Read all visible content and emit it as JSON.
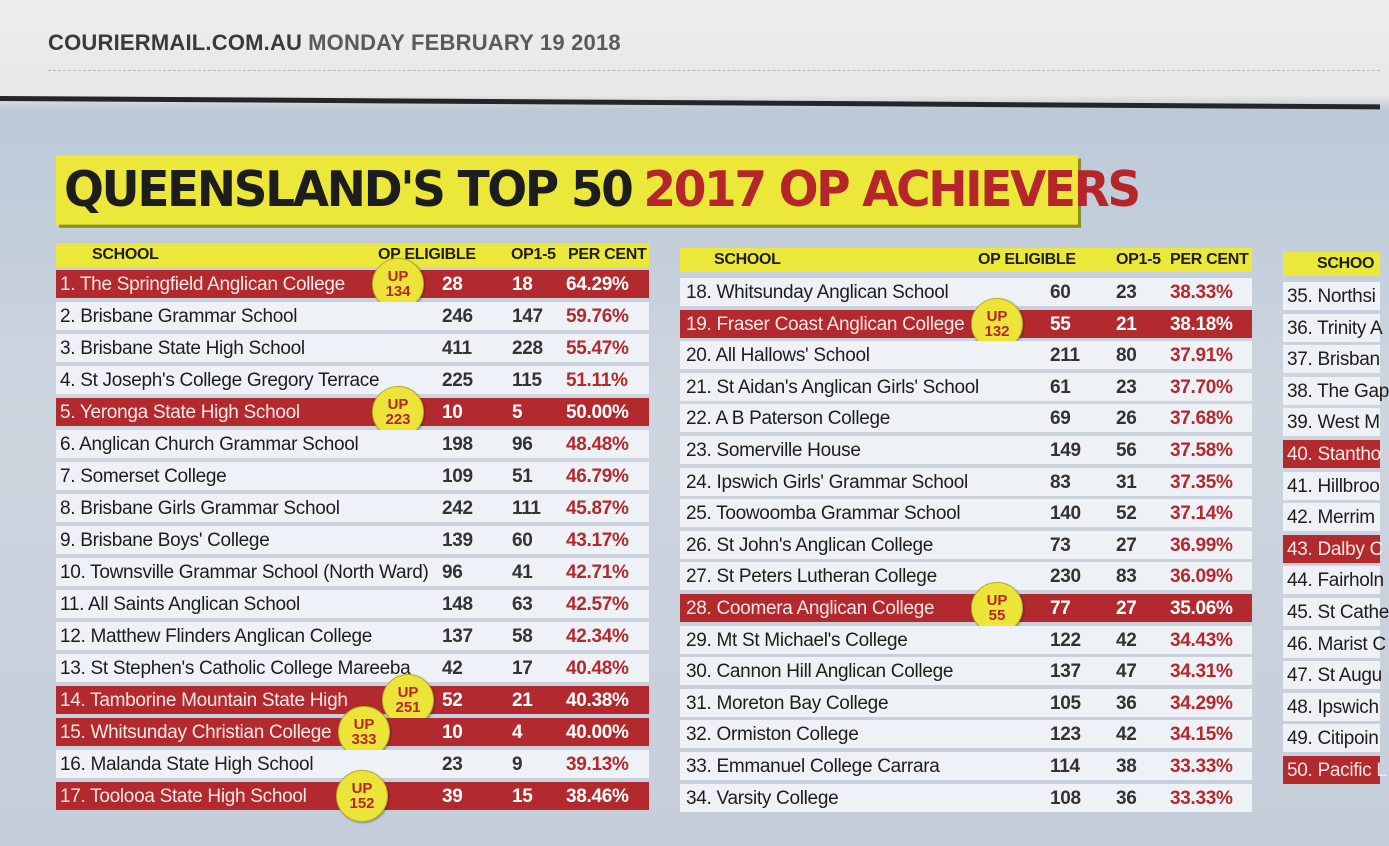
{
  "masthead": {
    "site": "COURIERMAIL.COM.AU",
    "date": "MONDAY FEBRUARY 19 2018"
  },
  "title": {
    "part1": "QUEENSLAND'S TOP 50",
    "part2": "2017 OP ACHIEVERS"
  },
  "headers": {
    "school": "SCHOOL",
    "eligible": "OP ELIGIBLE",
    "op": "OP1-5",
    "percent": "PER CENT"
  },
  "colors": {
    "highlight": "#b22a2e",
    "yellow": "#ece83a",
    "percent": "#b22a2e"
  },
  "col1": [
    {
      "name": "1. The Springfield Anglican College",
      "eligible": "28",
      "op": "18",
      "pct": "64.29%",
      "hl": true,
      "badge": "134"
    },
    {
      "name": "2. Brisbane Grammar School",
      "eligible": "246",
      "op": "147",
      "pct": "59.76%"
    },
    {
      "name": "3. Brisbane State High School",
      "eligible": "411",
      "op": "228",
      "pct": "55.47%"
    },
    {
      "name": "4. St Joseph's College Gregory Terrace",
      "eligible": "225",
      "op": "115",
      "pct": "51.11%"
    },
    {
      "name": "5. Yeronga State High School",
      "eligible": "10",
      "op": "5",
      "pct": "50.00%",
      "hl": true,
      "badge": "223"
    },
    {
      "name": "6. Anglican Church Grammar School",
      "eligible": "198",
      "op": "96",
      "pct": "48.48%"
    },
    {
      "name": "7. Somerset College",
      "eligible": "109",
      "op": "51",
      "pct": "46.79%"
    },
    {
      "name": "8. Brisbane Girls Grammar School",
      "eligible": "242",
      "op": "111",
      "pct": "45.87%"
    },
    {
      "name": "9. Brisbane Boys' College",
      "eligible": "139",
      "op": "60",
      "pct": "43.17%"
    },
    {
      "name": "10. Townsville Grammar School (North Ward)",
      "eligible": "96",
      "op": "41",
      "pct": "42.71%"
    },
    {
      "name": "11. All Saints Anglican School",
      "eligible": "148",
      "op": "63",
      "pct": "42.57%"
    },
    {
      "name": "12. Matthew Flinders Anglican College",
      "eligible": "137",
      "op": "58",
      "pct": "42.34%"
    },
    {
      "name": "13. St Stephen's Catholic College Mareeba",
      "eligible": "42",
      "op": "17",
      "pct": "40.48%"
    },
    {
      "name": "14. Tamborine Mountain State High",
      "eligible": "52",
      "op": "21",
      "pct": "40.38%",
      "hl": true,
      "badge": "251"
    },
    {
      "name": "15. Whitsunday Christian College",
      "eligible": "10",
      "op": "4",
      "pct": "40.00%",
      "hl": true,
      "badge": "333"
    },
    {
      "name": "16. Malanda State High School",
      "eligible": "23",
      "op": "9",
      "pct": "39.13%"
    },
    {
      "name": "17. Toolooa State High School",
      "eligible": "39",
      "op": "15",
      "pct": "38.46%",
      "hl": true,
      "badge": "152"
    }
  ],
  "col2": [
    {
      "name": "18. Whitsunday Anglican School",
      "eligible": "60",
      "op": "23",
      "pct": "38.33%"
    },
    {
      "name": "19. Fraser Coast Anglican College",
      "eligible": "55",
      "op": "21",
      "pct": "38.18%",
      "hl": true,
      "badge": "132"
    },
    {
      "name": "20. All Hallows' School",
      "eligible": "211",
      "op": "80",
      "pct": "37.91%"
    },
    {
      "name": "21. St Aidan's Anglican Girls' School",
      "eligible": "61",
      "op": "23",
      "pct": "37.70%"
    },
    {
      "name": "22. A B Paterson College",
      "eligible": "69",
      "op": "26",
      "pct": "37.68%"
    },
    {
      "name": "23. Somerville House",
      "eligible": "149",
      "op": "56",
      "pct": "37.58%"
    },
    {
      "name": "24. Ipswich Girls' Grammar School",
      "eligible": "83",
      "op": "31",
      "pct": "37.35%"
    },
    {
      "name": "25. Toowoomba Grammar School",
      "eligible": "140",
      "op": "52",
      "pct": "37.14%"
    },
    {
      "name": "26. St John's Anglican College",
      "eligible": "73",
      "op": "27",
      "pct": "36.99%"
    },
    {
      "name": "27. St Peters Lutheran College",
      "eligible": "230",
      "op": "83",
      "pct": "36.09%"
    },
    {
      "name": "28. Coomera Anglican College",
      "eligible": "77",
      "op": "27",
      "pct": "35.06%",
      "hl": true,
      "badge": "55"
    },
    {
      "name": "29. Mt St Michael's College",
      "eligible": "122",
      "op": "42",
      "pct": "34.43%"
    },
    {
      "name": "30. Cannon Hill Anglican College",
      "eligible": "137",
      "op": "47",
      "pct": "34.31%"
    },
    {
      "name": "31. Moreton Bay College",
      "eligible": "105",
      "op": "36",
      "pct": "34.29%"
    },
    {
      "name": "32. Ormiston College",
      "eligible": "123",
      "op": "42",
      "pct": "34.15%"
    },
    {
      "name": "33. Emmanuel College Carrara",
      "eligible": "114",
      "op": "38",
      "pct": "33.33%"
    },
    {
      "name": "34. Varsity College",
      "eligible": "108",
      "op": "36",
      "pct": "33.33%"
    }
  ],
  "col3": [
    {
      "name": "35. Northsi"
    },
    {
      "name": "36. Trinity A"
    },
    {
      "name": "37. Brisban"
    },
    {
      "name": "38. The Gap"
    },
    {
      "name": "39. West M"
    },
    {
      "name": "40. Stantho",
      "hl": true
    },
    {
      "name": "41. Hillbroo"
    },
    {
      "name": "42. Merrim"
    },
    {
      "name": "43. Dalby C",
      "hl": true
    },
    {
      "name": "44. Fairholn"
    },
    {
      "name": "45. St Cathe"
    },
    {
      "name": "46. Marist C"
    },
    {
      "name": "47. St Augu"
    },
    {
      "name": "48. Ipswich"
    },
    {
      "name": "49. Citipoin"
    },
    {
      "name": "50. Pacific L",
      "hl": true
    }
  ],
  "col3_header": "SCHOO",
  "badge_word": "UP"
}
